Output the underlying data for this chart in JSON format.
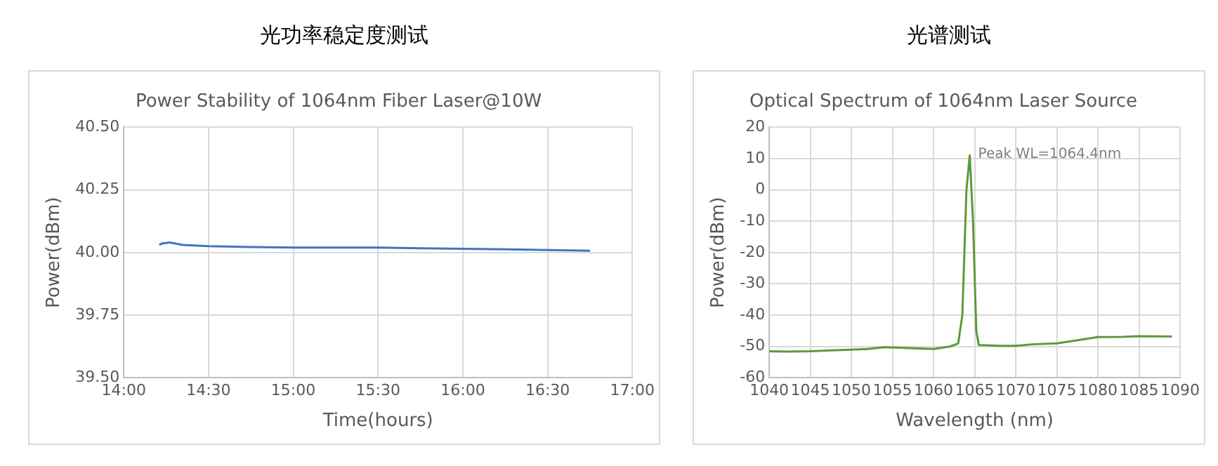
{
  "chart_data": [
    {
      "type": "line",
      "title": "光功率稳定度测试",
      "subtitle": "Power Stability of 1064nm Fiber Laser@10W",
      "xlabel": "Time(hours)",
      "ylabel": "Power(dBm)",
      "x": [
        14.21,
        14.22,
        14.27,
        14.35,
        14.5,
        14.75,
        15,
        15.25,
        15.5,
        15.75,
        16,
        16.25,
        16.5,
        16.75
      ],
      "series": [
        {
          "color": "#4472c4",
          "values": [
            40.03,
            40.035,
            40.04,
            40.03,
            40.025,
            40.022,
            40.02,
            40.02,
            40.02,
            40.017,
            40.015,
            40.013,
            40.01,
            40.007
          ]
        }
      ],
      "xlim": [
        14,
        17
      ],
      "xticks": [
        {
          "value": 14,
          "label": "14:00"
        },
        {
          "value": 14.5,
          "label": "14:30"
        },
        {
          "value": 15,
          "label": "15:00"
        },
        {
          "value": 15.5,
          "label": "15:30"
        },
        {
          "value": 16,
          "label": "16:00"
        },
        {
          "value": 16.5,
          "label": "16:30"
        },
        {
          "value": 17,
          "label": "17:00"
        }
      ],
      "ylim": [
        39.5,
        40.5
      ],
      "yticks": [
        {
          "value": 39.5,
          "label": "39.50"
        },
        {
          "value": 39.75,
          "label": "39.75"
        },
        {
          "value": 40,
          "label": "40.00"
        },
        {
          "value": 40.25,
          "label": "40.25"
        },
        {
          "value": 40.5,
          "label": "40.50"
        }
      ],
      "grid": true,
      "legend": false,
      "marker": "none",
      "line_style": "solid"
    },
    {
      "type": "line",
      "title": "光谱测试",
      "subtitle": "Optical Spectrum of 1064nm Laser Source",
      "xlabel": "Wavelength (nm)",
      "ylabel": "Power(dBm)",
      "x": [
        1040,
        1042,
        1045,
        1048,
        1050,
        1052,
        1054,
        1057,
        1060,
        1062,
        1063,
        1063.5,
        1064,
        1064.4,
        1064.8,
        1065.2,
        1065.5,
        1068,
        1070,
        1072,
        1075,
        1077,
        1080,
        1083,
        1085,
        1089
      ],
      "series": [
        {
          "color": "#5b9a3c",
          "values": [
            -51.5,
            -51.6,
            -51.5,
            -51.2,
            -51,
            -50.8,
            -50.2,
            -50.5,
            -50.8,
            -50,
            -49,
            -40,
            0,
            11,
            -10,
            -45,
            -49.5,
            -49.8,
            -49.8,
            -49.3,
            -49,
            -48.2,
            -47,
            -46.9,
            -46.7,
            -46.8
          ]
        }
      ],
      "xlim": [
        1040,
        1090
      ],
      "xticks": [
        1040,
        1045,
        1050,
        1055,
        1060,
        1065,
        1070,
        1075,
        1080,
        1085,
        1090
      ],
      "ylim": [
        -60,
        20
      ],
      "yticks": [
        -60,
        -50,
        -40,
        -30,
        -20,
        -10,
        0,
        10,
        20
      ],
      "annotations": [
        {
          "text": "Peak WL=1064.4nm",
          "x": 1064.4,
          "y": 11
        }
      ],
      "grid": true,
      "legend": false,
      "marker": "none",
      "line_style": "solid"
    }
  ]
}
